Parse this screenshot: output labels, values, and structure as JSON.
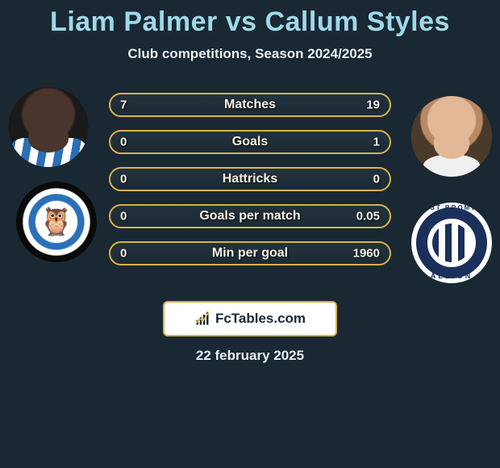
{
  "header": {
    "title": "Liam Palmer vs Callum Styles",
    "subtitle": "Club competitions, Season 2024/2025",
    "title_color": "#9ed9e8"
  },
  "players": {
    "p1": {
      "name": "Liam Palmer"
    },
    "p2": {
      "name": "Callum Styles"
    }
  },
  "crests": {
    "c1": {
      "name": "sheffield-wednesday-crest",
      "owl_glyph": "🦉"
    },
    "c2": {
      "name": "west-bromwich-albion-crest",
      "top_text": "EST BROMW",
      "bottom_text": "ALBION"
    }
  },
  "stats": [
    {
      "label": "Matches",
      "p1": "7",
      "p2": "19",
      "p1_share": 0.27
    },
    {
      "label": "Goals",
      "p1": "0",
      "p2": "1",
      "p1_share": 0.0
    },
    {
      "label": "Hattricks",
      "p1": "0",
      "p2": "0",
      "p1_share": 0.5
    },
    {
      "label": "Goals per match",
      "p1": "0",
      "p2": "0.05",
      "p1_share": 0.0
    },
    {
      "label": "Min per goal",
      "p1": "0",
      "p2": "1960",
      "p1_share": 0.0
    }
  ],
  "brand": {
    "text": "FcTables.com"
  },
  "date": "22 february 2025",
  "style": {
    "background": "#1a2833",
    "bar_border": "#d9b24a",
    "bar_bg_top": "#23323e",
    "bar_bg_bottom": "#1c2a35",
    "text_color": "#f6f0e0"
  }
}
